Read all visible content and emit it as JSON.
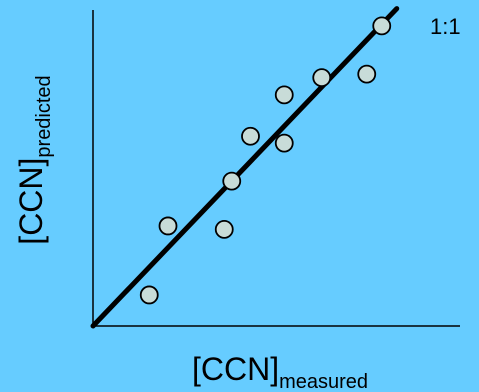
{
  "chart_data": {
    "type": "scatter",
    "title": "",
    "xlabel": {
      "main": "[CCN]",
      "subscript": "measured"
    },
    "ylabel": {
      "main": "[CCN]",
      "subscript": "predicted"
    },
    "xlim": [
      0,
      10
    ],
    "ylim": [
      0,
      10
    ],
    "grid": false,
    "legend": "none",
    "x_ticks": [],
    "y_ticks": [],
    "series": [
      {
        "points": [
          {
            "x": 1.5,
            "y": 0.9
          },
          {
            "x": 2.0,
            "y": 2.9
          },
          {
            "x": 3.5,
            "y": 2.8
          },
          {
            "x": 3.7,
            "y": 4.2
          },
          {
            "x": 4.2,
            "y": 5.5
          },
          {
            "x": 5.1,
            "y": 5.3
          },
          {
            "x": 5.1,
            "y": 6.7
          },
          {
            "x": 6.1,
            "y": 7.2
          },
          {
            "x": 7.3,
            "y": 7.3
          },
          {
            "x": 7.7,
            "y": 8.7
          }
        ]
      }
    ],
    "reference_line": {
      "label": "1:1",
      "from": [
        0,
        0
      ],
      "to": [
        8.1,
        9.2
      ]
    },
    "colors": {
      "background": "#66ccff",
      "marker_fill": "#c8dcd8",
      "marker_stroke": "#000000",
      "line": "#000000",
      "axis": "#000000"
    }
  }
}
